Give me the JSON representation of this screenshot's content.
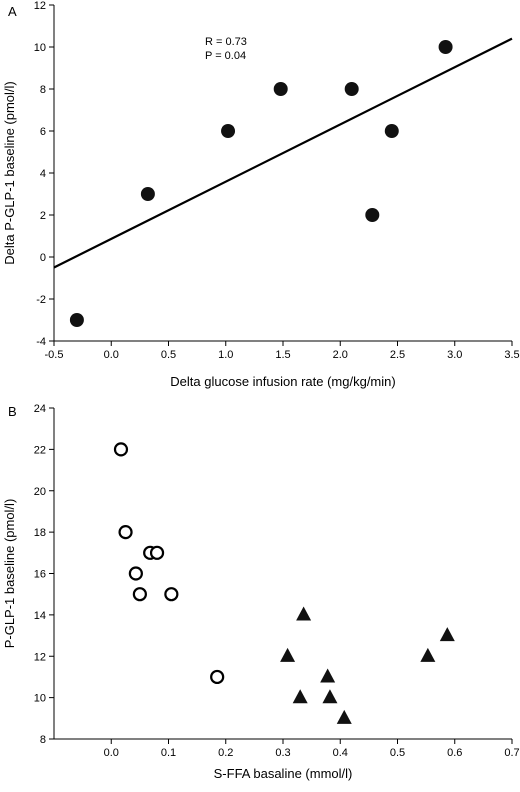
{
  "chart_data": [
    {
      "panel": "A",
      "type": "scatter",
      "xlabel": "Delta glucose infusion rate (mg/kg/min)",
      "ylabel": "Delta P-GLP-1 baseline (pmol/l)",
      "xlim": [
        -0.5,
        3.5
      ],
      "ylim": [
        -4,
        12
      ],
      "xticks": [
        "-0.5",
        "0.0",
        "0.5",
        "1.0",
        "1.5",
        "2.0",
        "2.5",
        "3.0",
        "3.5"
      ],
      "yticks": [
        "-4",
        "-2",
        "0",
        "2",
        "4",
        "6",
        "8",
        "10",
        "12"
      ],
      "grid": false,
      "marker": "filled-circle",
      "points": [
        {
          "x": -0.3,
          "y": -3
        },
        {
          "x": 0.32,
          "y": 3
        },
        {
          "x": 1.02,
          "y": 6
        },
        {
          "x": 1.48,
          "y": 8
        },
        {
          "x": 2.1,
          "y": 8
        },
        {
          "x": 2.28,
          "y": 2
        },
        {
          "x": 2.45,
          "y": 6
        },
        {
          "x": 2.92,
          "y": 10
        }
      ],
      "regression_line": {
        "x": [
          -0.5,
          3.5
        ],
        "y": [
          -0.5,
          10.4
        ]
      },
      "annotations": [
        "R = 0.73",
        "P = 0.04"
      ]
    },
    {
      "panel": "B",
      "type": "scatter",
      "xlabel": "S-FFA basaline (mmol/l)",
      "ylabel": "P-GLP-1 baseline (pmol/l)",
      "xlim": [
        -0.1,
        0.7
      ],
      "ylim": [
        8,
        24
      ],
      "xticks": [
        "0.0",
        "0.1",
        "0.2",
        "0.3",
        "0.4",
        "0.5",
        "0.6",
        "0.7"
      ],
      "yticks": [
        "8",
        "10",
        "12",
        "14",
        "16",
        "18",
        "20",
        "22",
        "24"
      ],
      "grid": false,
      "series": [
        {
          "marker": "open-circle",
          "points": [
            {
              "x": 0.017,
              "y": 22
            },
            {
              "x": 0.025,
              "y": 18
            },
            {
              "x": 0.068,
              "y": 17
            },
            {
              "x": 0.08,
              "y": 17
            },
            {
              "x": 0.043,
              "y": 16
            },
            {
              "x": 0.05,
              "y": 15
            },
            {
              "x": 0.105,
              "y": 15
            },
            {
              "x": 0.185,
              "y": 11
            }
          ]
        },
        {
          "marker": "filled-triangle",
          "points": [
            {
              "x": 0.336,
              "y": 14
            },
            {
              "x": 0.587,
              "y": 13
            },
            {
              "x": 0.308,
              "y": 12
            },
            {
              "x": 0.553,
              "y": 12
            },
            {
              "x": 0.378,
              "y": 11
            },
            {
              "x": 0.33,
              "y": 10
            },
            {
              "x": 0.382,
              "y": 10
            },
            {
              "x": 0.407,
              "y": 9
            }
          ]
        }
      ]
    }
  ]
}
